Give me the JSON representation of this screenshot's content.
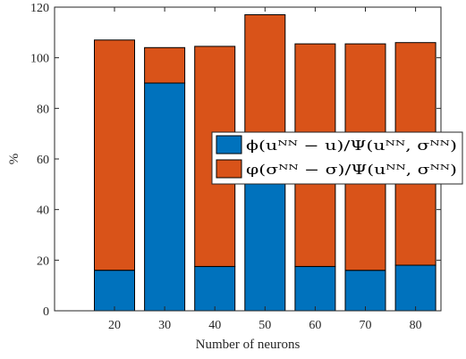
{
  "chart_data": {
    "type": "bar",
    "stacked": true,
    "categories": [
      "20",
      "30",
      "40",
      "50",
      "60",
      "70",
      "80"
    ],
    "series": [
      {
        "name": "ϕ(uᴺᴺ − u)/Ψ(uᴺᴺ, σᴺᴺ)",
        "color": "#0072BD",
        "values": [
          16,
          90,
          17.5,
          52,
          17.5,
          16,
          18
        ]
      },
      {
        "name": "φ(σᴺᴺ − σ)/Ψ(uᴺᴺ, σᴺᴺ)",
        "color": "#D95319",
        "values": [
          91,
          14,
          87,
          65,
          88,
          89.5,
          88
        ]
      }
    ],
    "xlabel": "Number of neurons",
    "ylabel": "%",
    "ylim": [
      0,
      120
    ],
    "yticks": [
      "0",
      "20",
      "40",
      "60",
      "80",
      "100",
      "120"
    ],
    "grid": false,
    "legend_position": "right"
  }
}
